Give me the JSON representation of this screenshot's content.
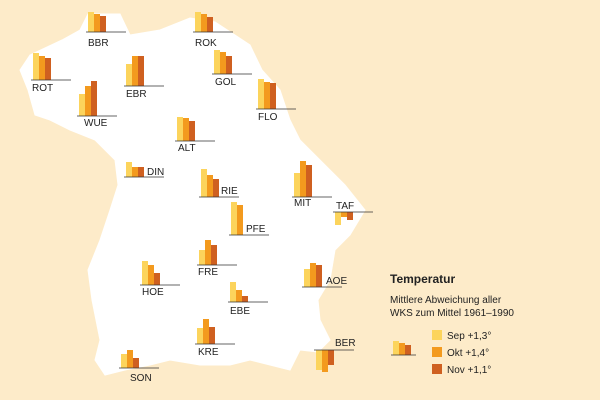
{
  "title": "Temperatur",
  "subtitle_lines": [
    "Mittlere Abweichung aller",
    "WKS zum Mittel 1961–1990"
  ],
  "legend": [
    {
      "label": "Sep +1,3°",
      "color": "#fcd45c"
    },
    {
      "label": "Okt +1,4°",
      "color": "#f39a1e"
    },
    {
      "label": "Nov +1,1°",
      "color": "#cf6020"
    }
  ],
  "stations": [
    {
      "name": "BBR",
      "values": [
        2.0,
        1.8,
        1.6
      ]
    },
    {
      "name": "ROK",
      "values": [
        2.0,
        1.8,
        1.5
      ]
    },
    {
      "name": "ROT",
      "values": [
        2.7,
        2.4,
        2.2
      ]
    },
    {
      "name": "EBR",
      "values": [
        2.2,
        3.0,
        3.0
      ]
    },
    {
      "name": "GOL",
      "values": [
        2.4,
        2.2,
        1.8
      ]
    },
    {
      "name": "WUE",
      "values": [
        2.2,
        3.0,
        3.5
      ]
    },
    {
      "name": "FLO",
      "values": [
        3.0,
        2.7,
        2.6
      ]
    },
    {
      "name": "ALT",
      "values": [
        2.4,
        2.3,
        2.0
      ]
    },
    {
      "name": "DIN",
      "values": [
        1.5,
        1.0,
        1.0
      ]
    },
    {
      "name": "RIE",
      "values": [
        2.8,
        2.2,
        1.8
      ]
    },
    {
      "name": "MIT",
      "values": [
        2.4,
        3.6,
        3.2
      ]
    },
    {
      "name": "TAF",
      "values": [
        -1.3,
        -0.5,
        -0.8
      ]
    },
    {
      "name": "PFE",
      "values": [
        3.3,
        3.0,
        0
      ]
    },
    {
      "name": "FRE",
      "values": [
        1.5,
        2.5,
        2.0
      ]
    },
    {
      "name": "HOE",
      "values": [
        2.4,
        2.0,
        1.2
      ]
    },
    {
      "name": "AOE",
      "values": [
        1.8,
        2.4,
        2.2
      ]
    },
    {
      "name": "EBE",
      "values": [
        2.0,
        1.2,
        0.6
      ]
    },
    {
      "name": "KRE",
      "values": [
        1.6,
        2.5,
        1.7
      ]
    },
    {
      "name": "SON",
      "values": [
        1.4,
        1.8,
        1.0
      ]
    },
    {
      "name": "BER",
      "values": [
        -2.0,
        -2.2,
        -1.5
      ]
    }
  ]
}
